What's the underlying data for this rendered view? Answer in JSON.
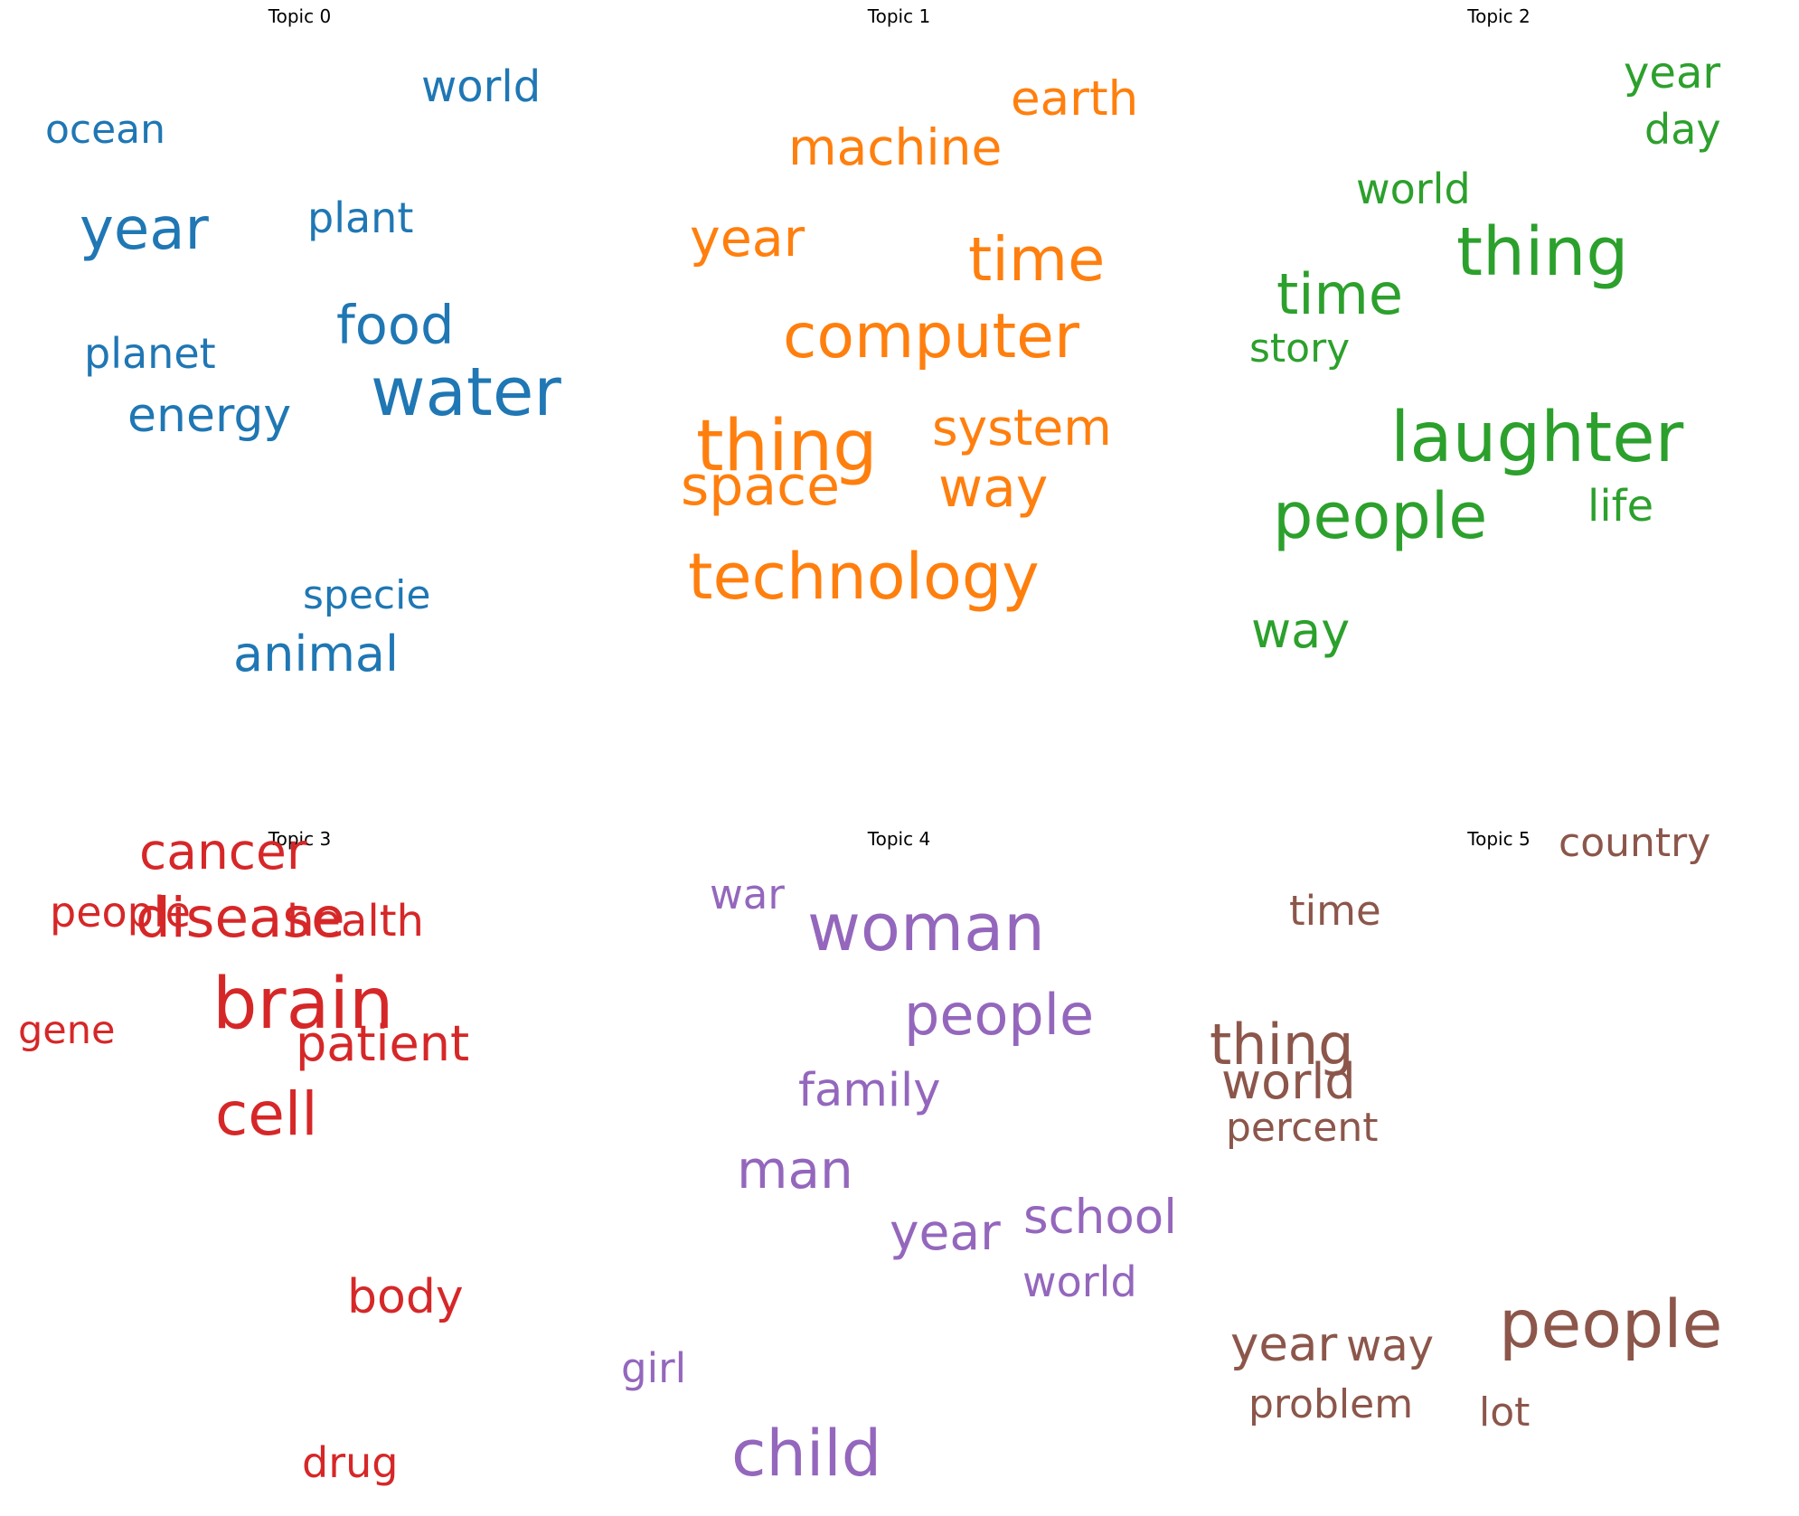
{
  "chart_data": [
    {
      "type": "wordcloud",
      "title": "Topic 0",
      "color": "#1f77b4",
      "words": [
        "water",
        "year",
        "food",
        "energy",
        "animal",
        "world",
        "planet",
        "plant",
        "specie",
        "ocean"
      ]
    },
    {
      "type": "wordcloud",
      "title": "Topic 1",
      "color": "#ff7f0e",
      "words": [
        "thing",
        "technology",
        "computer",
        "time",
        "space",
        "machine",
        "way",
        "system",
        "year",
        "earth"
      ]
    },
    {
      "type": "wordcloud",
      "title": "Topic 2",
      "color": "#2ca02c",
      "words": [
        "laughter",
        "thing",
        "people",
        "time",
        "way",
        "year",
        "life",
        "world",
        "day",
        "story"
      ]
    },
    {
      "type": "wordcloud",
      "title": "Topic 3",
      "color": "#d62728",
      "words": [
        "brain",
        "cell",
        "disease",
        "cancer",
        "patient",
        "body",
        "health",
        "people",
        "drug",
        "gene"
      ]
    },
    {
      "type": "wordcloud",
      "title": "Topic 4",
      "color": "#9467bd",
      "words": [
        "woman",
        "child",
        "people",
        "man",
        "year",
        "school",
        "family",
        "world",
        "girl",
        "war"
      ]
    },
    {
      "type": "wordcloud",
      "title": "Topic 5",
      "color": "#8c564b",
      "words": [
        "people",
        "thing",
        "world",
        "year",
        "way",
        "time",
        "percent",
        "country",
        "problem",
        "lot"
      ]
    }
  ]
}
